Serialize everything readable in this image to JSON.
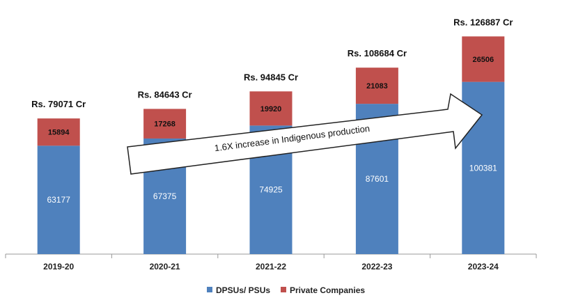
{
  "chart_data": {
    "type": "bar",
    "stacked": true,
    "categories": [
      "2019-20",
      "2020-21",
      "2021-22",
      "2022-23",
      "2023-24"
    ],
    "series": [
      {
        "name": "DPSUs/ PSUs",
        "values": [
          63177,
          67375,
          74925,
          87601,
          100381
        ],
        "color": "#4F81BD"
      },
      {
        "name": "Private Companies",
        "values": [
          15894,
          17268,
          19920,
          21083,
          26506
        ],
        "color": "#C0504D"
      }
    ],
    "totals": [
      "Rs. 79071 Cr",
      "Rs. 84643 Cr",
      "Rs. 94845 Cr",
      "Rs. 108684 Cr",
      "Rs.  126887 Cr"
    ],
    "annotation": "1.6X increase in Indigenous production",
    "ylim": [
      0,
      140000
    ],
    "grid": false,
    "legend_position": "bottom"
  }
}
